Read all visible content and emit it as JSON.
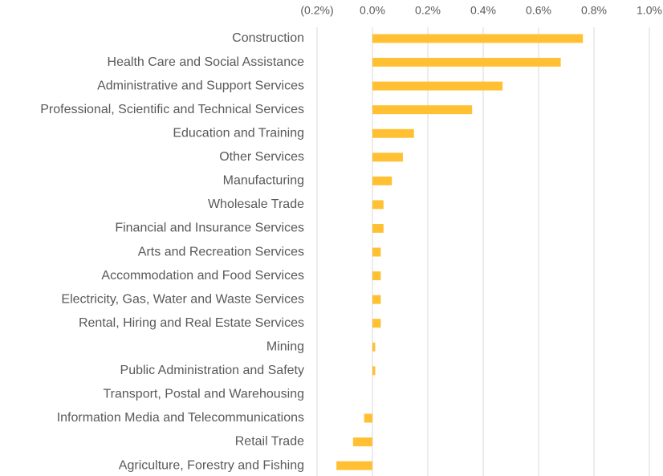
{
  "chart_data": {
    "type": "bar",
    "orientation": "horizontal",
    "categories": [
      "Construction",
      "Health Care and Social Assistance",
      "Administrative and Support Services",
      "Professional, Scientific and Technical Services",
      "Education and Training",
      "Other Services",
      "Manufacturing",
      "Wholesale Trade",
      "Financial and Insurance Services",
      "Arts and Recreation Services",
      "Accommodation and Food Services",
      "Electricity, Gas, Water and Waste Services",
      "Rental, Hiring and Real Estate Services",
      "Mining",
      "Public Administration and Safety",
      "Transport, Postal and Warehousing",
      "Information Media and Telecommunications",
      "Retail Trade",
      "Agriculture, Forestry and Fishing"
    ],
    "values": [
      0.76,
      0.68,
      0.47,
      0.36,
      0.15,
      0.11,
      0.07,
      0.04,
      0.04,
      0.03,
      0.03,
      0.03,
      0.03,
      0.01,
      0.01,
      0,
      -0.03,
      -0.07,
      -0.13
    ],
    "color": "#ffc133",
    "xlim": [
      -0.2,
      1.0
    ],
    "xticks": [
      {
        "value": -0.2,
        "label": "(0.2%)"
      },
      {
        "value": 0,
        "label": "0.0%"
      },
      {
        "value": 0.2,
        "label": "0.2%"
      },
      {
        "value": 0.4,
        "label": "0.4%"
      },
      {
        "value": 0.6,
        "label": "0.6%"
      },
      {
        "value": 0.8,
        "label": "0.8%"
      },
      {
        "value": 1.0,
        "label": "1.0%"
      }
    ],
    "grid": true
  }
}
